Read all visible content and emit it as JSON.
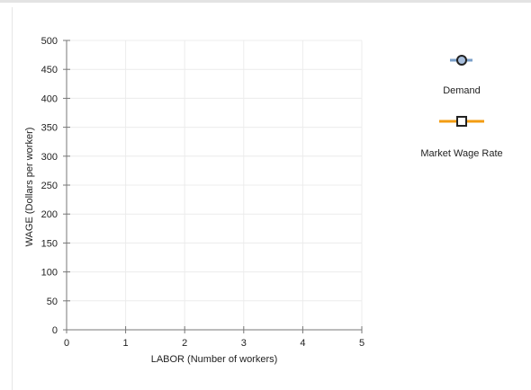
{
  "colors": {
    "demand": "#7a9fc9",
    "demand_marker_fill": "#a8bfdd",
    "market_wage": "#f39c12",
    "grid": "#ececec",
    "axis": "#777777"
  },
  "legend": [
    {
      "label": "Demand",
      "icon": "circle-marker-icon"
    },
    {
      "label": "Market Wage Rate",
      "icon": "square-marker-icon"
    }
  ],
  "chart_data": {
    "type": "line",
    "xlabel": "LABOR (Number of workers)",
    "ylabel": "WAGE (Dollars per worker)",
    "xlim": [
      0,
      5
    ],
    "ylim": [
      0,
      500
    ],
    "x_ticks": [
      0,
      1,
      2,
      3,
      4,
      5
    ],
    "y_ticks": [
      0,
      50,
      100,
      150,
      200,
      250,
      300,
      350,
      400,
      450,
      500
    ],
    "grid": true,
    "legend_position": "right",
    "series": [
      {
        "name": "Demand",
        "values": []
      },
      {
        "name": "Market Wage Rate",
        "values": []
      }
    ]
  }
}
